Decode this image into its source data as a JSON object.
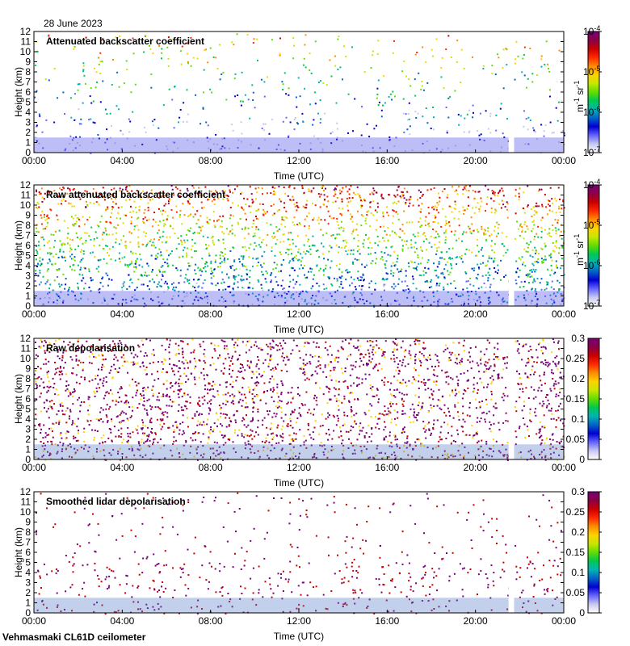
{
  "date": "28 June 2023",
  "footer": "Vehmasmaki CL61D ceilometer",
  "chart_data": [
    {
      "type": "heatmap",
      "title": "Attenuated backscatter coefficient",
      "xlabel": "Time (UTC)",
      "ylabel": "Height (km)",
      "x_ticks": [
        "00:00",
        "04:00",
        "08:00",
        "12:00",
        "16:00",
        "20:00",
        "00:00"
      ],
      "y_ticks": [
        "0",
        "1",
        "2",
        "3",
        "4",
        "5",
        "6",
        "7",
        "8",
        "9",
        "10",
        "11",
        "12"
      ],
      "ylim": [
        0,
        12
      ],
      "colorbar": {
        "scale": "log",
        "range": [
          "1e-7",
          "1e-4"
        ],
        "tick_base": "10",
        "tick_exponents": [
          "-4",
          "-5",
          "-6",
          "-7"
        ],
        "unit_m": "m",
        "unit_m_exp": "-1",
        "unit_sr": " sr",
        "unit_sr_exp": "-1"
      },
      "data_gap_utc": [
        21.5,
        21.75
      ]
    },
    {
      "type": "heatmap",
      "title": "Raw attenuated backscatter coefficient",
      "xlabel": "Time (UTC)",
      "ylabel": "Height (km)",
      "x_ticks": [
        "00:00",
        "04:00",
        "08:00",
        "12:00",
        "16:00",
        "20:00",
        "00:00"
      ],
      "y_ticks": [
        "0",
        "1",
        "2",
        "3",
        "4",
        "5",
        "6",
        "7",
        "8",
        "9",
        "10",
        "11",
        "12"
      ],
      "ylim": [
        0,
        12
      ],
      "colorbar": {
        "scale": "log",
        "range": [
          "1e-7",
          "1e-4"
        ],
        "tick_base": "10",
        "tick_exponents": [
          "-4",
          "-5",
          "-6",
          "-7"
        ],
        "unit_m": "m",
        "unit_m_exp": "-1",
        "unit_sr": " sr",
        "unit_sr_exp": "-1"
      },
      "data_gap_utc": [
        21.5,
        21.75
      ]
    },
    {
      "type": "heatmap",
      "title": "Raw depolarisation",
      "xlabel": "Time (UTC)",
      "ylabel": "Height (km)",
      "x_ticks": [
        "00:00",
        "04:00",
        "08:00",
        "12:00",
        "16:00",
        "20:00",
        "00:00"
      ],
      "y_ticks": [
        "0",
        "1",
        "2",
        "3",
        "4",
        "5",
        "6",
        "7",
        "8",
        "9",
        "10",
        "11",
        "12"
      ],
      "ylim": [
        0,
        12
      ],
      "colorbar": {
        "scale": "linear",
        "range": [
          0,
          0.3
        ],
        "ticks": [
          "0.3",
          "0.25",
          "0.2",
          "0.15",
          "0.1",
          "0.05",
          "0"
        ]
      },
      "data_gap_utc": [
        21.5,
        21.75
      ]
    },
    {
      "type": "heatmap",
      "title": "Smoothed lidar depolarisation",
      "xlabel": "Time (UTC)",
      "ylabel": "Height (km)",
      "x_ticks": [
        "00:00",
        "04:00",
        "08:00",
        "12:00",
        "16:00",
        "20:00",
        "00:00"
      ],
      "y_ticks": [
        "0",
        "1",
        "2",
        "3",
        "4",
        "5",
        "6",
        "7",
        "8",
        "9",
        "10",
        "11",
        "12"
      ],
      "ylim": [
        0,
        12
      ],
      "colorbar": {
        "scale": "linear",
        "range": [
          0,
          0.3
        ],
        "ticks": [
          "0.3",
          "0.25",
          "0.2",
          "0.15",
          "0.1",
          "0.05",
          "0"
        ]
      },
      "data_gap_utc": [
        21.5,
        21.75
      ]
    }
  ]
}
